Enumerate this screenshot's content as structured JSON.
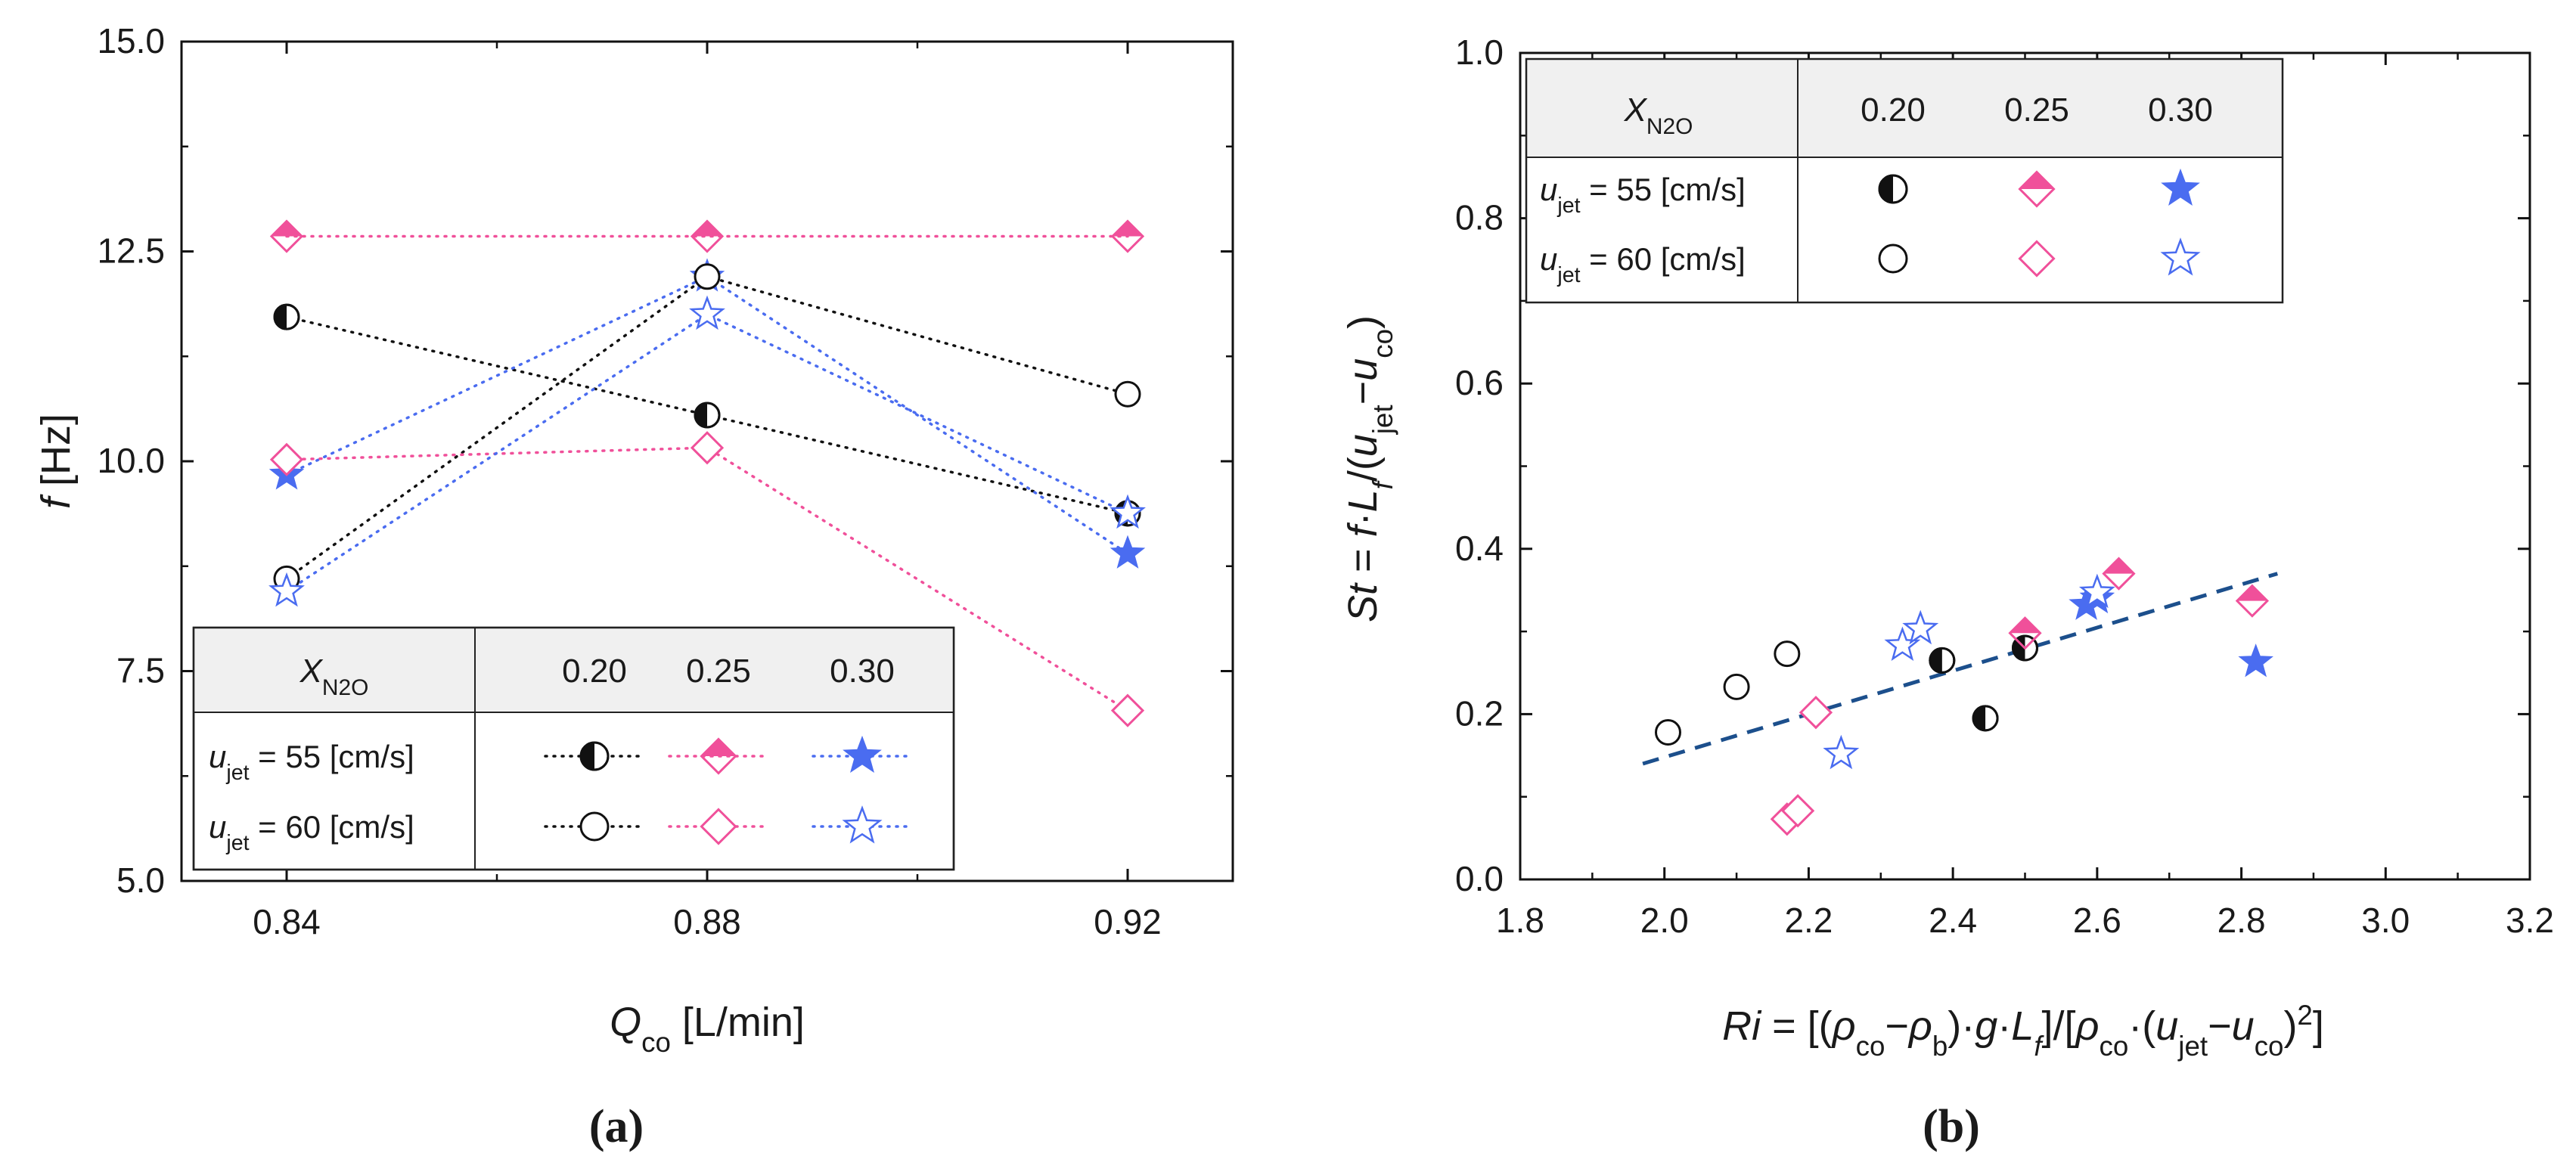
{
  "colors": {
    "black": "#111111",
    "pink": "#f0509a",
    "blue": "#4a6cf0",
    "fit": "#1c4f8c"
  },
  "chart_data": [
    {
      "panel": "a",
      "type": "line",
      "panel_label": "(a)",
      "xlabel": "Q",
      "xlabel_sub": "co",
      "xlabel_unit": " [L/min]",
      "ylabel": "f",
      "ylabel_unit": " [Hz]",
      "xlim": [
        0.83,
        0.93
      ],
      "ylim": [
        5.0,
        15.0
      ],
      "x": [
        0.84,
        0.88,
        0.92
      ],
      "xticks": [
        "0.84",
        "0.88",
        "0.92"
      ],
      "yticks": [
        "5.0",
        "7.5",
        "10.0",
        "12.5",
        "15.0"
      ],
      "series": [
        {
          "name": "X=0.20, u_jet=55",
          "color": "black",
          "marker": "half-circle",
          "values": [
            11.72,
            10.55,
            9.38
          ]
        },
        {
          "name": "X=0.25, u_jet=55",
          "color": "pink",
          "marker": "half-diamond",
          "values": [
            12.68,
            12.68,
            12.68
          ]
        },
        {
          "name": "X=0.30, u_jet=55",
          "color": "blue",
          "marker": "filled-star",
          "values": [
            9.84,
            12.2,
            8.9
          ]
        },
        {
          "name": "X=0.20, u_jet=60",
          "color": "black",
          "marker": "open-circle",
          "values": [
            8.6,
            12.2,
            10.8
          ]
        },
        {
          "name": "X=0.25, u_jet=60",
          "color": "pink",
          "marker": "open-diamond",
          "values": [
            10.02,
            10.16,
            7.03
          ]
        },
        {
          "name": "X=0.30, u_jet=60",
          "color": "blue",
          "marker": "open-star",
          "values": [
            8.45,
            11.75,
            9.38
          ]
        }
      ],
      "legend": {
        "position": "bottom",
        "header_label": "X",
        "header_sub": "N2O",
        "columns": [
          "0.20",
          "0.25",
          "0.30"
        ],
        "rows": [
          {
            "pre": "u",
            "sub": "jet",
            "post": " = 55 [cm/s]",
            "markers": [
              "half-circle",
              "half-diamond",
              "filled-star"
            ]
          },
          {
            "pre": "u",
            "sub": "jet",
            "post": " = 60 [cm/s]",
            "markers": [
              "open-circle",
              "open-diamond",
              "open-star"
            ]
          }
        ]
      }
    },
    {
      "panel": "b",
      "type": "scatter",
      "panel_label": "(b)",
      "ylabel_text": "St = f·L/(u−u)",
      "xlabel_text": "Ri = [(ρ−ρ)·g·L]/[ρ·(u−u)2]",
      "xlim": [
        1.8,
        3.2
      ],
      "ylim": [
        0.0,
        1.0
      ],
      "xticks": [
        "1.8",
        "2.0",
        "2.2",
        "2.4",
        "2.6",
        "2.8",
        "3.0",
        "3.2"
      ],
      "yticks": [
        "0.0",
        "0.2",
        "0.4",
        "0.6",
        "0.8",
        "1.0"
      ],
      "fit_line": {
        "x": [
          1.97,
          2.85
        ],
        "y": [
          0.14,
          0.37
        ],
        "style": "dashed"
      },
      "series": [
        {
          "name": "X=0.20, u_jet=55",
          "color": "black",
          "marker": "half-circle",
          "points": [
            [
              2.385,
              0.265
            ],
            [
              2.445,
              0.195
            ],
            [
              2.5,
              0.28
            ]
          ]
        },
        {
          "name": "X=0.25, u_jet=55",
          "color": "pink",
          "marker": "half-diamond",
          "points": [
            [
              2.5,
              0.298
            ],
            [
              2.63,
              0.37
            ],
            [
              2.815,
              0.337
            ]
          ]
        },
        {
          "name": "X=0.30, u_jet=55",
          "color": "blue",
          "marker": "filled-star",
          "points": [
            [
              2.585,
              0.332
            ],
            [
              2.6,
              0.34
            ],
            [
              2.82,
              0.263
            ]
          ]
        },
        {
          "name": "X=0.20, u_jet=60",
          "color": "black",
          "marker": "open-circle",
          "points": [
            [
              2.005,
              0.178
            ],
            [
              2.1,
              0.233
            ],
            [
              2.17,
              0.273
            ]
          ]
        },
        {
          "name": "X=0.25, u_jet=60",
          "color": "pink",
          "marker": "open-diamond",
          "points": [
            [
              2.17,
              0.073
            ],
            [
              2.185,
              0.083
            ],
            [
              2.21,
              0.202
            ]
          ]
        },
        {
          "name": "X=0.30, u_jet=60",
          "color": "blue",
          "marker": "open-star",
          "points": [
            [
              2.245,
              0.152
            ],
            [
              2.33,
              0.283
            ],
            [
              2.355,
              0.303
            ],
            [
              2.6,
              0.347
            ]
          ]
        }
      ],
      "legend": {
        "position": "top-left",
        "header_label": "X",
        "header_sub": "N2O",
        "columns": [
          "0.20",
          "0.25",
          "0.30"
        ],
        "rows": [
          {
            "pre": "u",
            "sub": "jet",
            "post": " = 55 [cm/s]",
            "markers": [
              "half-circle",
              "half-diamond",
              "filled-star"
            ]
          },
          {
            "pre": "u",
            "sub": "jet",
            "post": " = 60 [cm/s]",
            "markers": [
              "open-circle",
              "open-diamond",
              "open-star"
            ]
          }
        ]
      }
    }
  ]
}
